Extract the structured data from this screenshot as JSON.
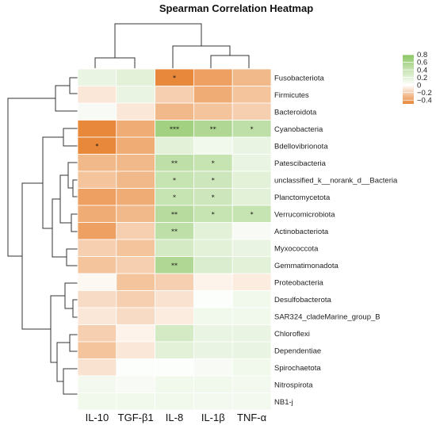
{
  "chart_data": {
    "type": "heatmap",
    "title": "Spearman Correlation Heatmap",
    "columns": [
      "IL-10",
      "TGF-β1",
      "IL-8",
      "IL-1β",
      "TNF-α"
    ],
    "rows": [
      "Fusobacteriota",
      "Firmicutes",
      "Bacteroidota",
      "Cyanobacteria",
      "Bdellovibrionota",
      "Patescibacteria",
      "unclassified_k__norank_d__Bacteria",
      "Planctomycetota",
      "Verrucomicrobiota",
      "Actinobacteriota",
      "Myxococcota",
      "Gemmatimonadota",
      "Proteobacteria",
      "Desulfobacterota",
      "SAR324_cladeMarine_group_B",
      "Chloroflexi",
      "Dependentiae",
      "Spirochaetota",
      "Nitrospirota",
      "NB1-j"
    ],
    "values": [
      [
        0.15,
        0.2,
        -0.5,
        -0.4,
        -0.3
      ],
      [
        -0.1,
        0.15,
        -0.2,
        -0.35,
        -0.25
      ],
      [
        0.05,
        -0.1,
        -0.3,
        -0.25,
        -0.2
      ],
      [
        -0.5,
        -0.35,
        0.65,
        0.55,
        0.45
      ],
      [
        -0.5,
        -0.35,
        0.2,
        0.1,
        0.15
      ],
      [
        -0.3,
        -0.3,
        0.45,
        0.4,
        0.15
      ],
      [
        -0.25,
        -0.3,
        0.4,
        0.35,
        0.2
      ],
      [
        -0.4,
        -0.35,
        0.4,
        0.35,
        0.2
      ],
      [
        -0.35,
        -0.3,
        0.5,
        0.4,
        0.4
      ],
      [
        -0.4,
        -0.2,
        0.45,
        0.2,
        0.05
      ],
      [
        -0.2,
        -0.25,
        0.3,
        0.2,
        0.15
      ],
      [
        -0.25,
        -0.2,
        0.55,
        0.25,
        0.2
      ],
      [
        -0.03,
        -0.25,
        -0.2,
        -0.05,
        -0.08
      ],
      [
        -0.15,
        -0.2,
        -0.12,
        0.02,
        0.1
      ],
      [
        -0.1,
        -0.15,
        -0.08,
        0.1,
        0.1
      ],
      [
        -0.2,
        -0.05,
        0.3,
        0.15,
        0.15
      ],
      [
        -0.25,
        -0.1,
        0.2,
        0.15,
        0.15
      ],
      [
        -0.12,
        0.02,
        0.02,
        0.05,
        0.1
      ],
      [
        0.08,
        0.05,
        0.1,
        0.1,
        0.08
      ],
      [
        0.1,
        0.1,
        0.1,
        0.08,
        0.08
      ]
    ],
    "significance": [
      [
        "",
        "",
        "*",
        "",
        ""
      ],
      [
        "",
        "",
        "",
        "",
        ""
      ],
      [
        "",
        "",
        "",
        "",
        ""
      ],
      [
        "",
        "",
        "***",
        "**",
        "*"
      ],
      [
        "*",
        "",
        "",
        "",
        ""
      ],
      [
        "",
        "",
        "**",
        "*",
        ""
      ],
      [
        "",
        "",
        "*",
        "*",
        ""
      ],
      [
        "",
        "",
        "*",
        "*",
        ""
      ],
      [
        "",
        "",
        "**",
        "*",
        "*"
      ],
      [
        "",
        "",
        "**",
        "",
        ""
      ],
      [
        "",
        "",
        "",
        "",
        ""
      ],
      [
        "",
        "",
        "**",
        "",
        ""
      ],
      [
        "",
        "",
        "",
        "",
        ""
      ],
      [
        "",
        "",
        "",
        "",
        ""
      ],
      [
        "",
        "",
        "",
        "",
        ""
      ],
      [
        "",
        "",
        "",
        "",
        ""
      ],
      [
        "",
        "",
        "",
        "",
        ""
      ],
      [
        "",
        "",
        "",
        "",
        ""
      ],
      [
        "",
        "",
        "",
        "",
        ""
      ],
      [
        "",
        "",
        "",
        "",
        ""
      ]
    ],
    "color_scale": {
      "min": -0.5,
      "max": 0.8,
      "negative_color": "#e8883a",
      "neutral_color": "#ffffff",
      "positive_color": "#8cc664",
      "ticks": [
        "0.8",
        "0.6",
        "0.4",
        "0.2",
        "0",
        "−0.2",
        "−0.4"
      ],
      "tick_values": [
        0.8,
        0.6,
        0.4,
        0.2,
        0,
        -0.2,
        -0.4
      ]
    },
    "legend_position": "top-right",
    "row_dendrogram": "left",
    "column_dendrogram": "top"
  }
}
